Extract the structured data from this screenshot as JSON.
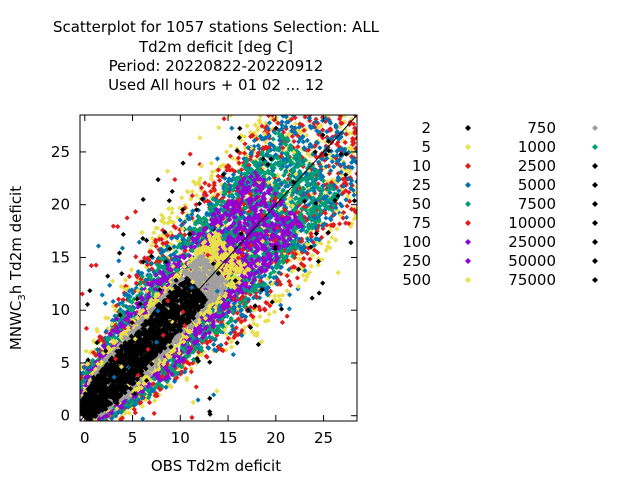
{
  "chart_data": {
    "type": "scatter",
    "title": [
      "Scatterplot for 1057 stations Selection: ALL",
      "Td2m deficit [deg C]",
      "Period: 20220822-20220912",
      "Used  All hours  + 01 02 ... 12"
    ],
    "xlabel": "OBS Td2m deficit",
    "ylabel_main": "MNWC",
    "ylabel_sub": "3",
    "ylabel_rest": "h Td2m deficit",
    "xlim": [
      -0.5,
      28.5
    ],
    "ylim": [
      -0.5,
      28.5
    ],
    "x_ticks": [
      "0",
      "5",
      "10",
      "15",
      "20",
      "25"
    ],
    "y_ticks": [
      "0",
      "5",
      "10",
      "15",
      "20",
      "25"
    ],
    "diagonal_line": true,
    "legend_placement": "right",
    "legend_col1": [
      {
        "label": "2",
        "color": "#000000"
      },
      {
        "label": "5",
        "color": "#e8df4b"
      },
      {
        "label": "10",
        "color": "#e31a1c"
      },
      {
        "label": "25",
        "color": "#0072b2"
      },
      {
        "label": "50",
        "color": "#009e73"
      },
      {
        "label": "75",
        "color": "#e31a1c"
      },
      {
        "label": "100",
        "color": "#9400d3"
      },
      {
        "label": "250",
        "color": "#9400d3"
      },
      {
        "label": "500",
        "color": "#e8df4b"
      }
    ],
    "legend_col2": [
      {
        "label": "750",
        "color": "#a0a0a0"
      },
      {
        "label": "1000",
        "color": "#009e73"
      },
      {
        "label": "2500",
        "color": "#000000"
      },
      {
        "label": "5000",
        "color": "#000000"
      },
      {
        "label": "7500",
        "color": "#000000"
      },
      {
        "label": "10000",
        "color": "#000000"
      },
      {
        "label": "25000",
        "color": "#000000"
      },
      {
        "label": "50000",
        "color": "#000000"
      },
      {
        "label": "75000",
        "color": "#000000"
      }
    ],
    "density_bands": [
      {
        "name": "yellow-outer",
        "color": "#e8df4b",
        "offset": 10.5,
        "spread": 0.55
      },
      {
        "name": "red",
        "color": "#e31a1c",
        "offset": 9.2,
        "spread": 0.55
      },
      {
        "name": "blue",
        "color": "#0072b2",
        "offset": 7.8,
        "spread": 0.5
      },
      {
        "name": "green",
        "color": "#009e73",
        "offset": 6.6,
        "spread": 0.45
      },
      {
        "name": "purple",
        "color": "#9400d3",
        "offset": 5.4,
        "spread": 0.45
      },
      {
        "name": "yellow-inner",
        "color": "#e8df4b",
        "offset": 3.6,
        "spread": 0.4
      },
      {
        "name": "gray",
        "color": "#a0a0a0",
        "offset": 2.9,
        "spread": 0.35
      },
      {
        "name": "black-core",
        "color": "#000000",
        "offset": 2.2,
        "spread": 0.3
      }
    ]
  }
}
